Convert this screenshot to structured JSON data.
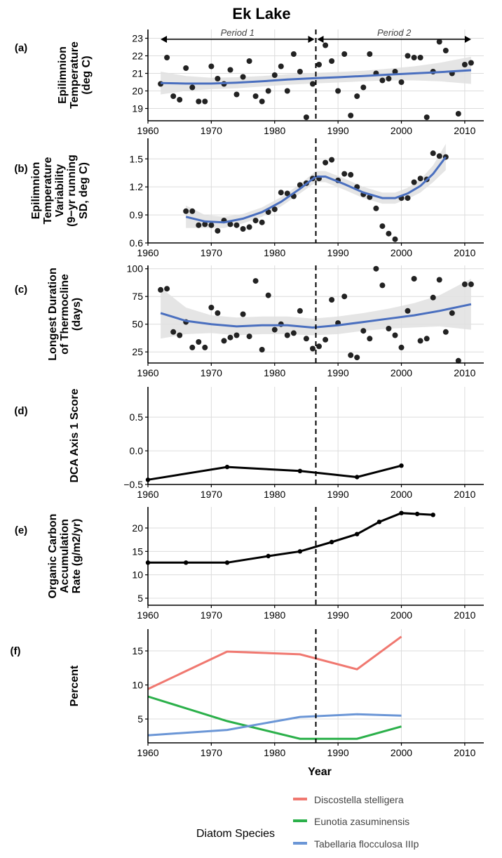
{
  "figure_title": "Ek Lake",
  "x_axis_label": "Year",
  "colors": {
    "points": "#222222",
    "smooth": "#4a6fbf",
    "band": "#e0e0e0",
    "grid": "#dcdcdc",
    "black_line": "#000000"
  },
  "chart_data": [
    {
      "type": "scatter",
      "panel_label": "(a)",
      "ylabel_lines": [
        "Epilimnion",
        "Temperature",
        "(deg C)"
      ],
      "xlim": [
        1960,
        2013
      ],
      "ylim": [
        18.3,
        23.5
      ],
      "xticks": [
        1960,
        1970,
        1980,
        1990,
        2000,
        2010
      ],
      "yticks": [
        19,
        20,
        21,
        22,
        23
      ],
      "vline_x": 1986.5,
      "period_arrows": [
        {
          "label": "Period 1",
          "from": 1962,
          "to": 1986.5
        },
        {
          "label": "Period 2",
          "from": 1986.5,
          "to": 2011
        }
      ],
      "points": {
        "x": [
          1962,
          1963,
          1964,
          1965,
          1966,
          1967,
          1968,
          1969,
          1970,
          1971,
          1972,
          1973,
          1974,
          1975,
          1976,
          1977,
          1978,
          1979,
          1980,
          1981,
          1982,
          1983,
          1984,
          1985,
          1986,
          1987,
          1988,
          1989,
          1990,
          1991,
          1992,
          1993,
          1994,
          1995,
          1996,
          1997,
          1998,
          1999,
          2000,
          2001,
          2002,
          2003,
          2004,
          2005,
          2006,
          2007,
          2008,
          2009,
          2010,
          2011
        ],
        "y": [
          20.4,
          21.9,
          19.7,
          19.5,
          21.3,
          20.2,
          19.4,
          19.4,
          21.4,
          20.7,
          20.4,
          21.2,
          19.8,
          20.8,
          21.7,
          19.7,
          19.4,
          20.0,
          20.9,
          21.4,
          20.0,
          22.1,
          21.1,
          18.5,
          20.4,
          21.5,
          22.6,
          21.7,
          20.0,
          22.1,
          18.6,
          19.7,
          20.2,
          22.1,
          21.0,
          20.6,
          20.7,
          21.1,
          20.5,
          22.0,
          21.9,
          21.9,
          18.5,
          21.1,
          22.8,
          22.3,
          21.0,
          18.7,
          21.5,
          21.6
        ]
      },
      "smooth": {
        "x": [
          1962,
          1966,
          1970,
          1974,
          1978,
          1982,
          1986,
          1990,
          1994,
          1998,
          2002,
          2006,
          2011
        ],
        "y": [
          20.45,
          20.42,
          20.42,
          20.47,
          20.55,
          20.65,
          20.72,
          20.78,
          20.85,
          20.93,
          21.0,
          21.07,
          21.18
        ],
        "lower": [
          19.8,
          20.0,
          20.1,
          20.15,
          20.25,
          20.35,
          20.42,
          20.48,
          20.55,
          20.6,
          20.6,
          20.55,
          20.4
        ],
        "upper": [
          21.1,
          20.85,
          20.75,
          20.78,
          20.85,
          20.95,
          21.02,
          21.08,
          21.15,
          21.27,
          21.4,
          21.6,
          21.95
        ]
      }
    },
    {
      "type": "scatter",
      "panel_label": "(b)",
      "ylabel_lines": [
        "Epilimnion",
        "Temperature",
        "Variability",
        "(9−yr running",
        "SD, deg C)"
      ],
      "xlim": [
        1960,
        2013
      ],
      "ylim": [
        0.6,
        1.72
      ],
      "xticks": [
        1960,
        1970,
        1980,
        1990,
        2000,
        2010
      ],
      "yticks": [
        0.6,
        0.9,
        1.2,
        1.5
      ],
      "ytick_labels": [
        "0.6",
        "0.9",
        "1.2",
        "1.5"
      ],
      "vline_x": 1986.5,
      "points": {
        "x": [
          1966,
          1967,
          1968,
          1969,
          1970,
          1971,
          1972,
          1973,
          1974,
          1975,
          1976,
          1977,
          1978,
          1979,
          1980,
          1981,
          1982,
          1983,
          1984,
          1985,
          1986,
          1987,
          1988,
          1989,
          1990,
          1991,
          1992,
          1993,
          1994,
          1995,
          1996,
          1997,
          1998,
          1999,
          2000,
          2001,
          2002,
          2003,
          2004,
          2005,
          2006,
          2007
        ],
        "y": [
          0.94,
          0.94,
          0.79,
          0.8,
          0.79,
          0.73,
          0.84,
          0.8,
          0.79,
          0.75,
          0.77,
          0.84,
          0.82,
          0.93,
          0.96,
          1.14,
          1.13,
          1.1,
          1.22,
          1.24,
          1.29,
          1.29,
          1.46,
          1.49,
          1.27,
          1.34,
          1.33,
          1.2,
          1.12,
          1.09,
          0.97,
          0.78,
          0.7,
          0.64,
          1.08,
          1.08,
          1.25,
          1.29,
          1.28,
          1.56,
          1.53,
          1.52
        ]
      },
      "smooth": {
        "x": [
          1966,
          1969,
          1972,
          1975,
          1978,
          1981,
          1984,
          1986.5,
          1988,
          1991,
          1994,
          1997,
          1999,
          2001,
          2003,
          2005,
          2007
        ],
        "y": [
          0.88,
          0.83,
          0.82,
          0.86,
          0.93,
          1.04,
          1.18,
          1.31,
          1.31,
          1.23,
          1.14,
          1.08,
          1.08,
          1.13,
          1.21,
          1.34,
          1.52
        ],
        "lower": [
          0.76,
          0.76,
          0.76,
          0.81,
          0.88,
          0.99,
          1.13,
          1.25,
          1.25,
          1.17,
          1.08,
          1.02,
          1.02,
          1.07,
          1.14,
          1.25,
          1.38
        ],
        "upper": [
          1.0,
          0.9,
          0.88,
          0.91,
          0.98,
          1.09,
          1.23,
          1.37,
          1.37,
          1.29,
          1.2,
          1.14,
          1.14,
          1.19,
          1.28,
          1.43,
          1.66
        ]
      }
    },
    {
      "type": "scatter",
      "panel_label": "(c)",
      "ylabel_lines": [
        "Longest Duration",
        "of Thermocline",
        "(days)"
      ],
      "xlim": [
        1960,
        2013
      ],
      "ylim": [
        15,
        103
      ],
      "xticks": [
        1960,
        1970,
        1980,
        1990,
        2000,
        2010
      ],
      "yticks": [
        25,
        50,
        75,
        100
      ],
      "vline_x": 1986.5,
      "points": {
        "x": [
          1962,
          1963,
          1964,
          1965,
          1966,
          1967,
          1968,
          1969,
          1970,
          1971,
          1972,
          1973,
          1974,
          1975,
          1976,
          1977,
          1978,
          1979,
          1980,
          1981,
          1982,
          1983,
          1984,
          1985,
          1986,
          1987,
          1988,
          1989,
          1990,
          1991,
          1992,
          1993,
          1994,
          1995,
          1996,
          1997,
          1998,
          1999,
          2000,
          2001,
          2002,
          2003,
          2004,
          2005,
          2006,
          2007,
          2008,
          2009,
          2010,
          2011
        ],
        "y": [
          81,
          82,
          43,
          40,
          52,
          29,
          34,
          29,
          65,
          60,
          35,
          38,
          40,
          59,
          39,
          89,
          27,
          76,
          45,
          50,
          40,
          42,
          62,
          37,
          28,
          30,
          36,
          72,
          51,
          75,
          22,
          20,
          44,
          37,
          100,
          85,
          46,
          40,
          29,
          62,
          91,
          35,
          37,
          74,
          90,
          43,
          60,
          17,
          86,
          86
        ]
      },
      "smooth": {
        "x": [
          1962,
          1966,
          1970,
          1974,
          1978,
          1982,
          1986,
          1990,
          1994,
          1998,
          2002,
          2006,
          2011
        ],
        "y": [
          60,
          53,
          50,
          48,
          49,
          49,
          47,
          49,
          52,
          55,
          58,
          62,
          68
        ],
        "lower": [
          37,
          41,
          42,
          40,
          41,
          41,
          40,
          41,
          44,
          46,
          47,
          48,
          45
        ],
        "upper": [
          83,
          65,
          58,
          56,
          57,
          57,
          55,
          57,
          60,
          64,
          69,
          76,
          91
        ]
      }
    },
    {
      "type": "line",
      "panel_label": "(d)",
      "ylabel_lines": [
        "DCA Axis 1 Score"
      ],
      "xlim": [
        1960,
        2013
      ],
      "ylim": [
        -0.5,
        0.95
      ],
      "xticks": [
        1960,
        1970,
        1980,
        1990,
        2000,
        2010
      ],
      "yticks": [
        -0.5,
        0.0,
        0.5
      ],
      "ytick_labels": [
        "−0.5",
        "0.0",
        "0.5"
      ],
      "vline_x": 1986.5,
      "line": {
        "x": [
          1960,
          1972.5,
          1984,
          1993,
          2000
        ],
        "y": [
          -0.43,
          -0.24,
          -0.3,
          -0.39,
          -0.22
        ]
      }
    },
    {
      "type": "line",
      "panel_label": "(e)",
      "ylabel_lines": [
        "Organic Carbon",
        "Accumulation",
        "Rate (g/m2/yr)"
      ],
      "xlim": [
        1960,
        2013
      ],
      "ylim": [
        3.5,
        24.5
      ],
      "xticks": [
        1960,
        1970,
        1980,
        1990,
        2000,
        2010
      ],
      "yticks": [
        5,
        10,
        15,
        20
      ],
      "vline_x": 1986.5,
      "line": {
        "x": [
          1960,
          1966,
          1972.5,
          1979,
          1984,
          1989,
          1993,
          1996.5,
          2000,
          2002.5,
          2005
        ],
        "y": [
          12.6,
          12.6,
          12.6,
          14.0,
          15.0,
          17.0,
          18.7,
          21.3,
          23.2,
          23.0,
          22.8
        ]
      }
    },
    {
      "type": "line",
      "panel_label": "(f)",
      "ylabel_lines": [
        "Percent"
      ],
      "xlim": [
        1960,
        2013
      ],
      "ylim": [
        1.5,
        18.2
      ],
      "xticks": [
        1960,
        1970,
        1980,
        1990,
        2000,
        2010
      ],
      "yticks": [
        5,
        10,
        15
      ],
      "vline_x": 1986.5,
      "series": [
        {
          "name": "Discostella stelligera",
          "color": "#f07870",
          "x": [
            1960,
            1972.5,
            1984,
            1993,
            2000
          ],
          "y": [
            9.4,
            14.9,
            14.5,
            12.3,
            17.1
          ]
        },
        {
          "name": "Eunotia zasuminensis",
          "color": "#2bb04a",
          "x": [
            1960,
            1972.5,
            1984,
            1993,
            2000
          ],
          "y": [
            8.3,
            4.7,
            2.1,
            2.1,
            3.9
          ]
        },
        {
          "name": "Tabellaria flocculosa IIIp",
          "color": "#6b96d6",
          "x": [
            1960,
            1972.5,
            1984,
            1993,
            2000
          ],
          "y": [
            2.6,
            3.4,
            5.3,
            5.7,
            5.5
          ]
        }
      ]
    }
  ],
  "legend": {
    "title": "Diatom Species",
    "items": [
      "Discostella stelligera",
      "Eunotia zasuminensis",
      "Tabellaria flocculosa IIIp"
    ]
  }
}
